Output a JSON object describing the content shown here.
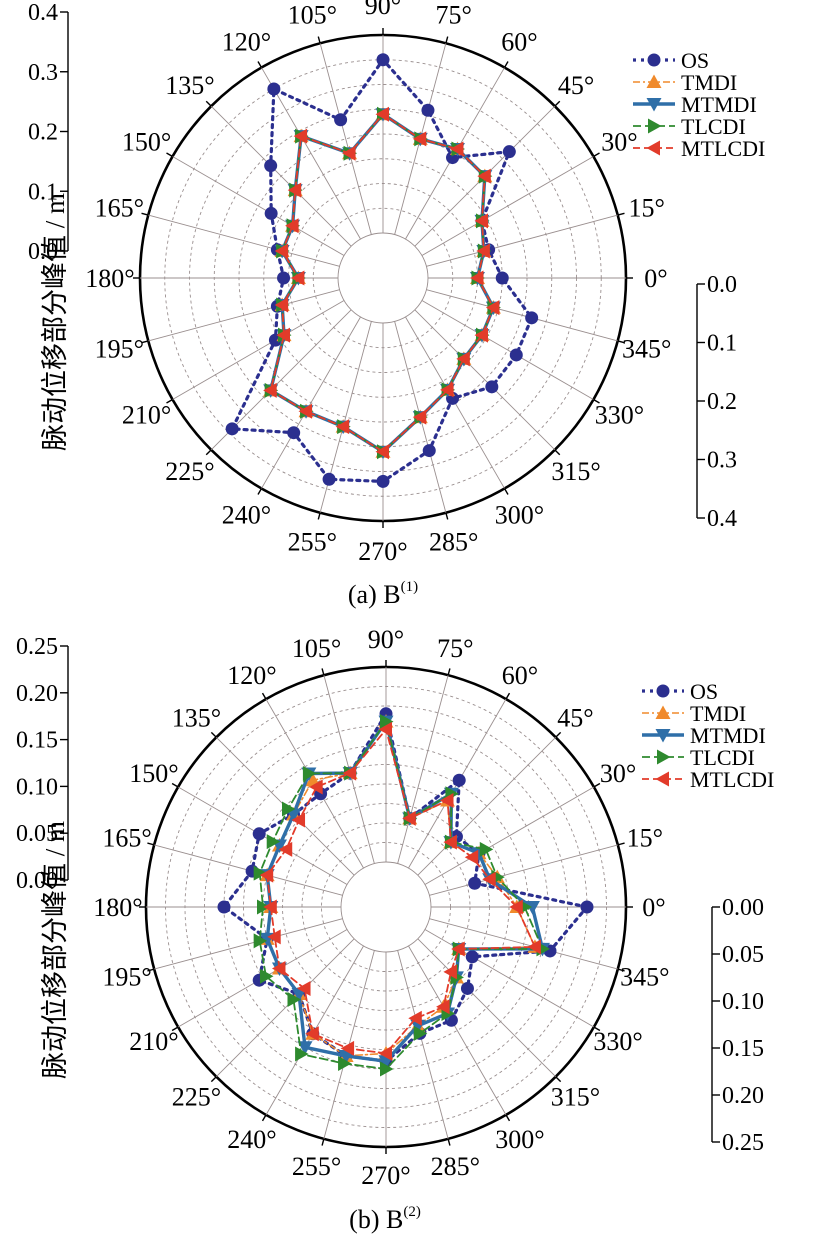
{
  "figure": {
    "ylabel_chinese": "脉动位移部分峰值 / m",
    "colors": {
      "OS": "#2b2f8f",
      "TMDI": "#f08a2c",
      "MTMDI": "#2f6fa8",
      "TLCDI": "#2e8a2e",
      "MTLCDI": "#e23b2a"
    },
    "markers": {
      "OS": "circle",
      "TMDI": "triangle-up",
      "MTMDI": "triangle-down",
      "TLCDI": "triangle-right",
      "MTLCDI": "triangle-left"
    }
  },
  "chart_data": [
    {
      "type": "polar-line",
      "title": "(a) B",
      "title_superscript": "(1)",
      "ylabel": "脉动位移部分峰值 / m",
      "rlim": [
        0,
        0.4
      ],
      "r_ticks_upper": [
        "0.4",
        "0.3",
        "0.2",
        "0.1",
        "0.0"
      ],
      "r_ticks_lower": [
        "0.0",
        "0.1",
        "0.2",
        "0.3",
        "0.4"
      ],
      "angle_labels": [
        "0°",
        "15°",
        "30°",
        "45°",
        "60°",
        "75°",
        "90°",
        "105°",
        "120°",
        "135°",
        "150°",
        "165°",
        "180°",
        "195°",
        "210°",
        "225°",
        "240°",
        "255°",
        "270°",
        "285°",
        "300°",
        "315°",
        "330°",
        "345°"
      ],
      "theta": [
        0,
        15,
        30,
        45,
        60,
        75,
        90,
        105,
        120,
        135,
        150,
        165,
        180,
        195,
        210,
        225,
        240,
        255,
        270,
        285,
        300,
        315,
        330,
        345
      ],
      "legend": [
        "OS",
        "TMDI",
        "MTMDI",
        "TLCDI",
        "MTLCDI"
      ],
      "legend_position": "top-right",
      "series": [
        {
          "name": "OS",
          "values": [
            0.15,
            0.13,
            0.14,
            0.27,
            0.19,
            0.26,
            0.35,
            0.24,
            0.35,
            0.23,
            0.17,
            0.13,
            0.11,
            0.13,
            0.16,
            0.34,
            0.27,
            0.33,
            0.32,
            0.27,
            0.19,
            0.22,
            0.22,
            0.22
          ]
        },
        {
          "name": "TMDI",
          "values": [
            0.1,
            0.12,
            0.14,
            0.2,
            0.21,
            0.2,
            0.24,
            0.17,
            0.24,
            0.16,
            0.12,
            0.12,
            0.08,
            0.12,
            0.14,
            0.23,
            0.22,
            0.22,
            0.26,
            0.2,
            0.17,
            0.14,
            0.14,
            0.14
          ]
        },
        {
          "name": "MTMDI",
          "values": [
            0.1,
            0.12,
            0.14,
            0.2,
            0.21,
            0.2,
            0.24,
            0.17,
            0.24,
            0.16,
            0.12,
            0.12,
            0.08,
            0.12,
            0.14,
            0.23,
            0.22,
            0.22,
            0.26,
            0.2,
            0.17,
            0.14,
            0.14,
            0.14
          ]
        },
        {
          "name": "TLCDI",
          "values": [
            0.1,
            0.12,
            0.14,
            0.2,
            0.21,
            0.2,
            0.24,
            0.17,
            0.24,
            0.16,
            0.12,
            0.12,
            0.08,
            0.12,
            0.14,
            0.23,
            0.22,
            0.22,
            0.26,
            0.2,
            0.17,
            0.14,
            0.14,
            0.14
          ]
        },
        {
          "name": "MTLCDI",
          "values": [
            0.1,
            0.12,
            0.14,
            0.2,
            0.21,
            0.2,
            0.24,
            0.17,
            0.24,
            0.16,
            0.12,
            0.12,
            0.08,
            0.12,
            0.14,
            0.23,
            0.22,
            0.22,
            0.26,
            0.2,
            0.17,
            0.14,
            0.14,
            0.14
          ]
        }
      ]
    },
    {
      "type": "polar-line",
      "title": "(b) B",
      "title_superscript": "(2)",
      "ylabel": "脉动位移部分峰值 / m",
      "rlim": [
        0,
        0.25
      ],
      "r_ticks_upper": [
        "0.25",
        "0.20",
        "0.15",
        "0.10",
        "0.05",
        "0.00"
      ],
      "r_ticks_lower": [
        "0.00",
        "0.05",
        "0.10",
        "0.15",
        "0.20",
        "0.25"
      ],
      "angle_labels": [
        "0°",
        "15°",
        "30°",
        "45°",
        "60°",
        "75°",
        "90°",
        "105°",
        "120°",
        "135°",
        "150°",
        "165°",
        "180°",
        "195°",
        "210°",
        "225°",
        "240°",
        "255°",
        "270°",
        "285°",
        "300°",
        "315°",
        "330°",
        "345°"
      ],
      "theta": [
        0,
        15,
        30,
        45,
        60,
        75,
        90,
        105,
        120,
        135,
        150,
        165,
        180,
        195,
        210,
        225,
        240,
        255,
        270,
        285,
        300,
        315,
        330,
        345
      ],
      "legend": [
        "OS",
        "TMDI",
        "MTMDI",
        "TLCDI",
        "MTLCDI"
      ],
      "legend_position": "top-right",
      "series": [
        {
          "name": "OS",
          "values": [
            0.2,
            0.06,
            0.08,
            0.07,
            0.13,
            0.06,
            0.19,
            0.12,
            0.11,
            0.11,
            0.13,
            0.12,
            0.15,
            0.1,
            0.13,
            0.1,
            0.13,
            0.14,
            0.14,
            0.11,
            0.11,
            0.09,
            0.07,
            0.16
          ]
        },
        {
          "name": "TMDI",
          "values": [
            0.11,
            0.09,
            0.08,
            0.06,
            0.1,
            0.06,
            0.18,
            0.12,
            0.13,
            0.11,
            0.1,
            0.1,
            0.09,
            0.1,
            0.1,
            0.1,
            0.13,
            0.14,
            0.13,
            0.1,
            0.09,
            0.07,
            0.05,
            0.14
          ]
        },
        {
          "name": "MTMDI",
          "values": [
            0.13,
            0.08,
            0.08,
            0.06,
            0.11,
            0.06,
            0.18,
            0.12,
            0.14,
            0.11,
            0.1,
            0.1,
            0.09,
            0.1,
            0.1,
            0.1,
            0.15,
            0.14,
            0.14,
            0.1,
            0.1,
            0.07,
            0.05,
            0.15
          ]
        },
        {
          "name": "TLCDI",
          "values": [
            0.12,
            0.09,
            0.09,
            0.06,
            0.11,
            0.06,
            0.18,
            0.12,
            0.14,
            0.12,
            0.11,
            0.11,
            0.1,
            0.11,
            0.12,
            0.11,
            0.16,
            0.15,
            0.15,
            0.11,
            0.1,
            0.07,
            0.05,
            0.15
          ]
        },
        {
          "name": "MTLCDI",
          "values": [
            0.11,
            0.08,
            0.07,
            0.06,
            0.1,
            0.06,
            0.17,
            0.12,
            0.12,
            0.1,
            0.09,
            0.1,
            0.09,
            0.09,
            0.1,
            0.09,
            0.13,
            0.13,
            0.13,
            0.09,
            0.09,
            0.06,
            0.05,
            0.14
          ]
        }
      ]
    }
  ]
}
